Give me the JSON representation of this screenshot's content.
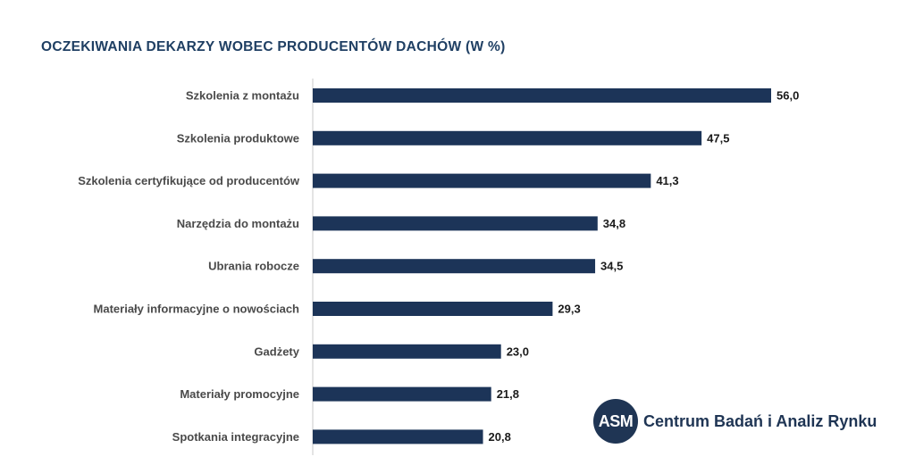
{
  "colors": {
    "bar": "#1c3458",
    "axis": "#c8c8c8",
    "title": "#1f3f63",
    "logo": "#1f3554"
  },
  "chart_data": {
    "type": "bar",
    "orientation": "horizontal",
    "title": "OCZEKIWANIA DEKARZY WOBEC PRODUCENTÓW DACHÓW (W %)",
    "xlabel": "",
    "ylabel": "",
    "xlim": [
      0,
      56
    ],
    "grid": false,
    "legend": "none",
    "categories": [
      "Szkolenia z montażu",
      "Szkolenia produktowe",
      "Szkolenia certyfikujące od producentów",
      "Narzędzia do montażu",
      "Ubrania robocze",
      "Materiały informacyjne o nowościach",
      "Gadżety",
      "Materiały promocyjne",
      "Spotkania integracyjne"
    ],
    "values": [
      56.0,
      47.5,
      41.3,
      34.8,
      34.5,
      29.3,
      23.0,
      21.8,
      20.8
    ],
    "value_labels": [
      "56,0",
      "47,5",
      "41,3",
      "34,8",
      "34,5",
      "29,3",
      "23,0",
      "21,8",
      "20,8"
    ]
  },
  "logo": {
    "badge": "ASM",
    "name": "Centrum Badań i Analiz Rynku"
  }
}
